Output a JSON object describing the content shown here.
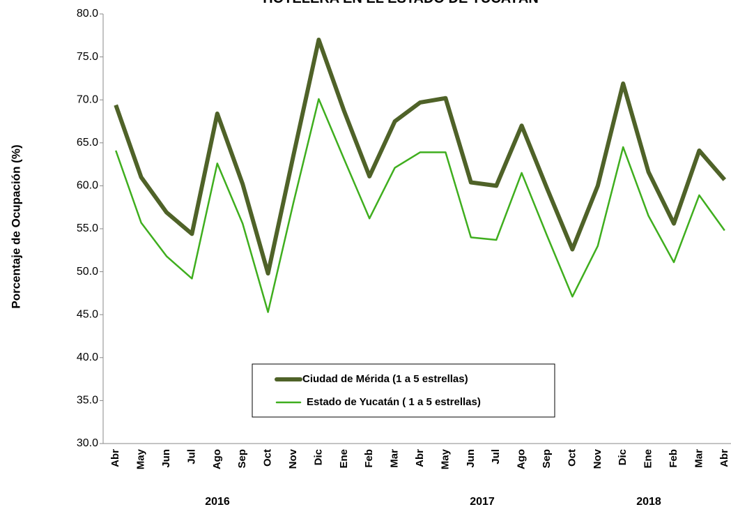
{
  "chart_data": {
    "type": "line",
    "title": "HOTELERA EN EL ESTADO DE YUCATÁN",
    "y_label": "Porcentaje de Ocupación (%)",
    "categories": [
      "Abr",
      "May",
      "Jun",
      "Jul",
      "Ago",
      "Sep",
      "Oct",
      "Nov",
      "Dic",
      "Ene",
      "Feb",
      "Mar",
      "Abr",
      "May",
      "Jun",
      "Jul",
      "Ago",
      "Sep",
      "Oct",
      "Nov",
      "Dic",
      "Ene",
      "Feb",
      "Mar",
      "Abr"
    ],
    "years": [
      "2016",
      "2017",
      "2018"
    ],
    "series": [
      {
        "name": "Ciudad de Mérida (1 a 5 estrellas)",
        "color": "#4f6228",
        "values": [
          69.4,
          61.0,
          56.9,
          54.4,
          68.4,
          60.2,
          49.8,
          63.5,
          77.0,
          68.7,
          61.1,
          67.5,
          69.7,
          70.2,
          60.4,
          60.0,
          67.0,
          59.7,
          52.6,
          60.0,
          71.9,
          61.6,
          55.6,
          64.1,
          60.7
        ]
      },
      {
        "name": "Estado de Yucatán ( 1 a 5 estrellas)",
        "color": "#3fae1e",
        "values": [
          64.1,
          55.7,
          51.8,
          49.2,
          62.6,
          55.6,
          45.3,
          58.0,
          70.1,
          63.1,
          56.2,
          62.1,
          63.9,
          63.9,
          54.0,
          53.7,
          61.5,
          54.2,
          47.1,
          53.0,
          64.5,
          56.5,
          51.1,
          58.9,
          54.8
        ]
      }
    ],
    "ylim": [
      30,
      80
    ],
    "yticks": [
      {
        "value": 30,
        "label": "30.0"
      },
      {
        "value": 35,
        "label": "35.0"
      },
      {
        "value": 40,
        "label": "40.0"
      },
      {
        "value": 45,
        "label": "45.0"
      },
      {
        "value": 50,
        "label": "50.0"
      },
      {
        "value": 55,
        "label": "55.0"
      },
      {
        "value": 60,
        "label": "60.0"
      },
      {
        "value": 65,
        "label": "65.0"
      },
      {
        "value": 70,
        "label": "70.0"
      },
      {
        "value": 75,
        "label": "75.0"
      },
      {
        "value": 80,
        "label": "80.0"
      }
    ],
    "grid": false
  }
}
